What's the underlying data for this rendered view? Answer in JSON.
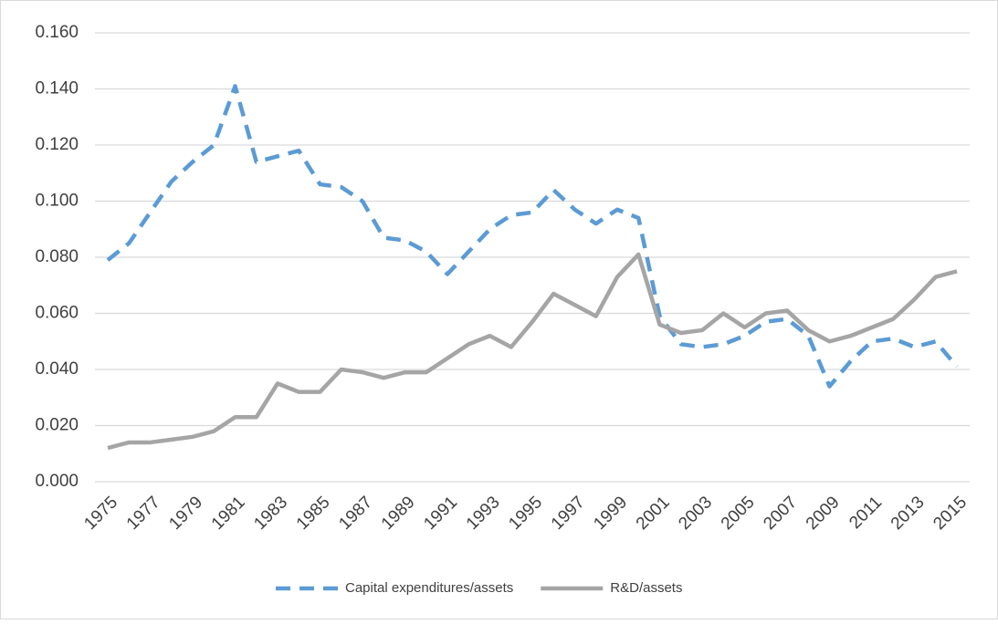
{
  "chart_data": {
    "type": "line",
    "x": [
      1975,
      1976,
      1977,
      1978,
      1979,
      1980,
      1981,
      1982,
      1983,
      1984,
      1985,
      1986,
      1987,
      1988,
      1989,
      1990,
      1991,
      1992,
      1993,
      1994,
      1995,
      1996,
      1997,
      1998,
      1999,
      2000,
      2001,
      2002,
      2003,
      2004,
      2005,
      2006,
      2007,
      2008,
      2009,
      2010,
      2011,
      2012,
      2013,
      2014,
      2015
    ],
    "xlim": [
      1975,
      2015
    ],
    "xticks": [
      1975,
      1977,
      1979,
      1981,
      1983,
      1985,
      1987,
      1989,
      1991,
      1993,
      1995,
      1997,
      1999,
      2001,
      2003,
      2005,
      2007,
      2009,
      2011,
      2013,
      2015
    ],
    "ylim": [
      0,
      0.16
    ],
    "yticks": [
      {
        "value": 0,
        "label": "0.000"
      },
      {
        "value": 0.02,
        "label": "0.020"
      },
      {
        "value": 0.04,
        "label": "0.040"
      },
      {
        "value": 0.06,
        "label": "0.060"
      },
      {
        "value": 0.08,
        "label": "0.080"
      },
      {
        "value": 0.1,
        "label": "0.100"
      },
      {
        "value": 0.12,
        "label": "0.120"
      },
      {
        "value": 0.14,
        "label": "0.140"
      },
      {
        "value": 0.16,
        "label": "0.160"
      }
    ],
    "grid": true,
    "legend": "bottom",
    "series": [
      {
        "name": "Capital expenditures/assets",
        "color": "#5b9bd5",
        "line_style": "dashed",
        "values": [
          0.079,
          0.085,
          0.096,
          0.107,
          0.114,
          0.12,
          0.141,
          0.114,
          0.116,
          0.118,
          0.106,
          0.105,
          0.1,
          0.087,
          0.086,
          0.082,
          0.074,
          0.082,
          0.09,
          0.095,
          0.096,
          0.104,
          0.097,
          0.092,
          0.097,
          0.094,
          0.059,
          0.049,
          0.048,
          0.049,
          0.052,
          0.057,
          0.058,
          0.052,
          0.034,
          0.043,
          0.05,
          0.051,
          0.048,
          0.05,
          0.041
        ]
      },
      {
        "name": "R&D/assets",
        "color": "#a5a5a5",
        "line_style": "solid",
        "values": [
          0.012,
          0.014,
          0.014,
          0.015,
          0.016,
          0.018,
          0.023,
          0.023,
          0.035,
          0.032,
          0.032,
          0.04,
          0.039,
          0.037,
          0.039,
          0.039,
          0.044,
          0.049,
          0.052,
          0.048,
          0.057,
          0.067,
          0.063,
          0.059,
          0.073,
          0.081,
          0.056,
          0.053,
          0.054,
          0.06,
          0.055,
          0.06,
          0.061,
          0.054,
          0.05,
          0.052,
          0.055,
          0.058,
          0.065,
          0.073,
          0.075
        ]
      }
    ]
  }
}
